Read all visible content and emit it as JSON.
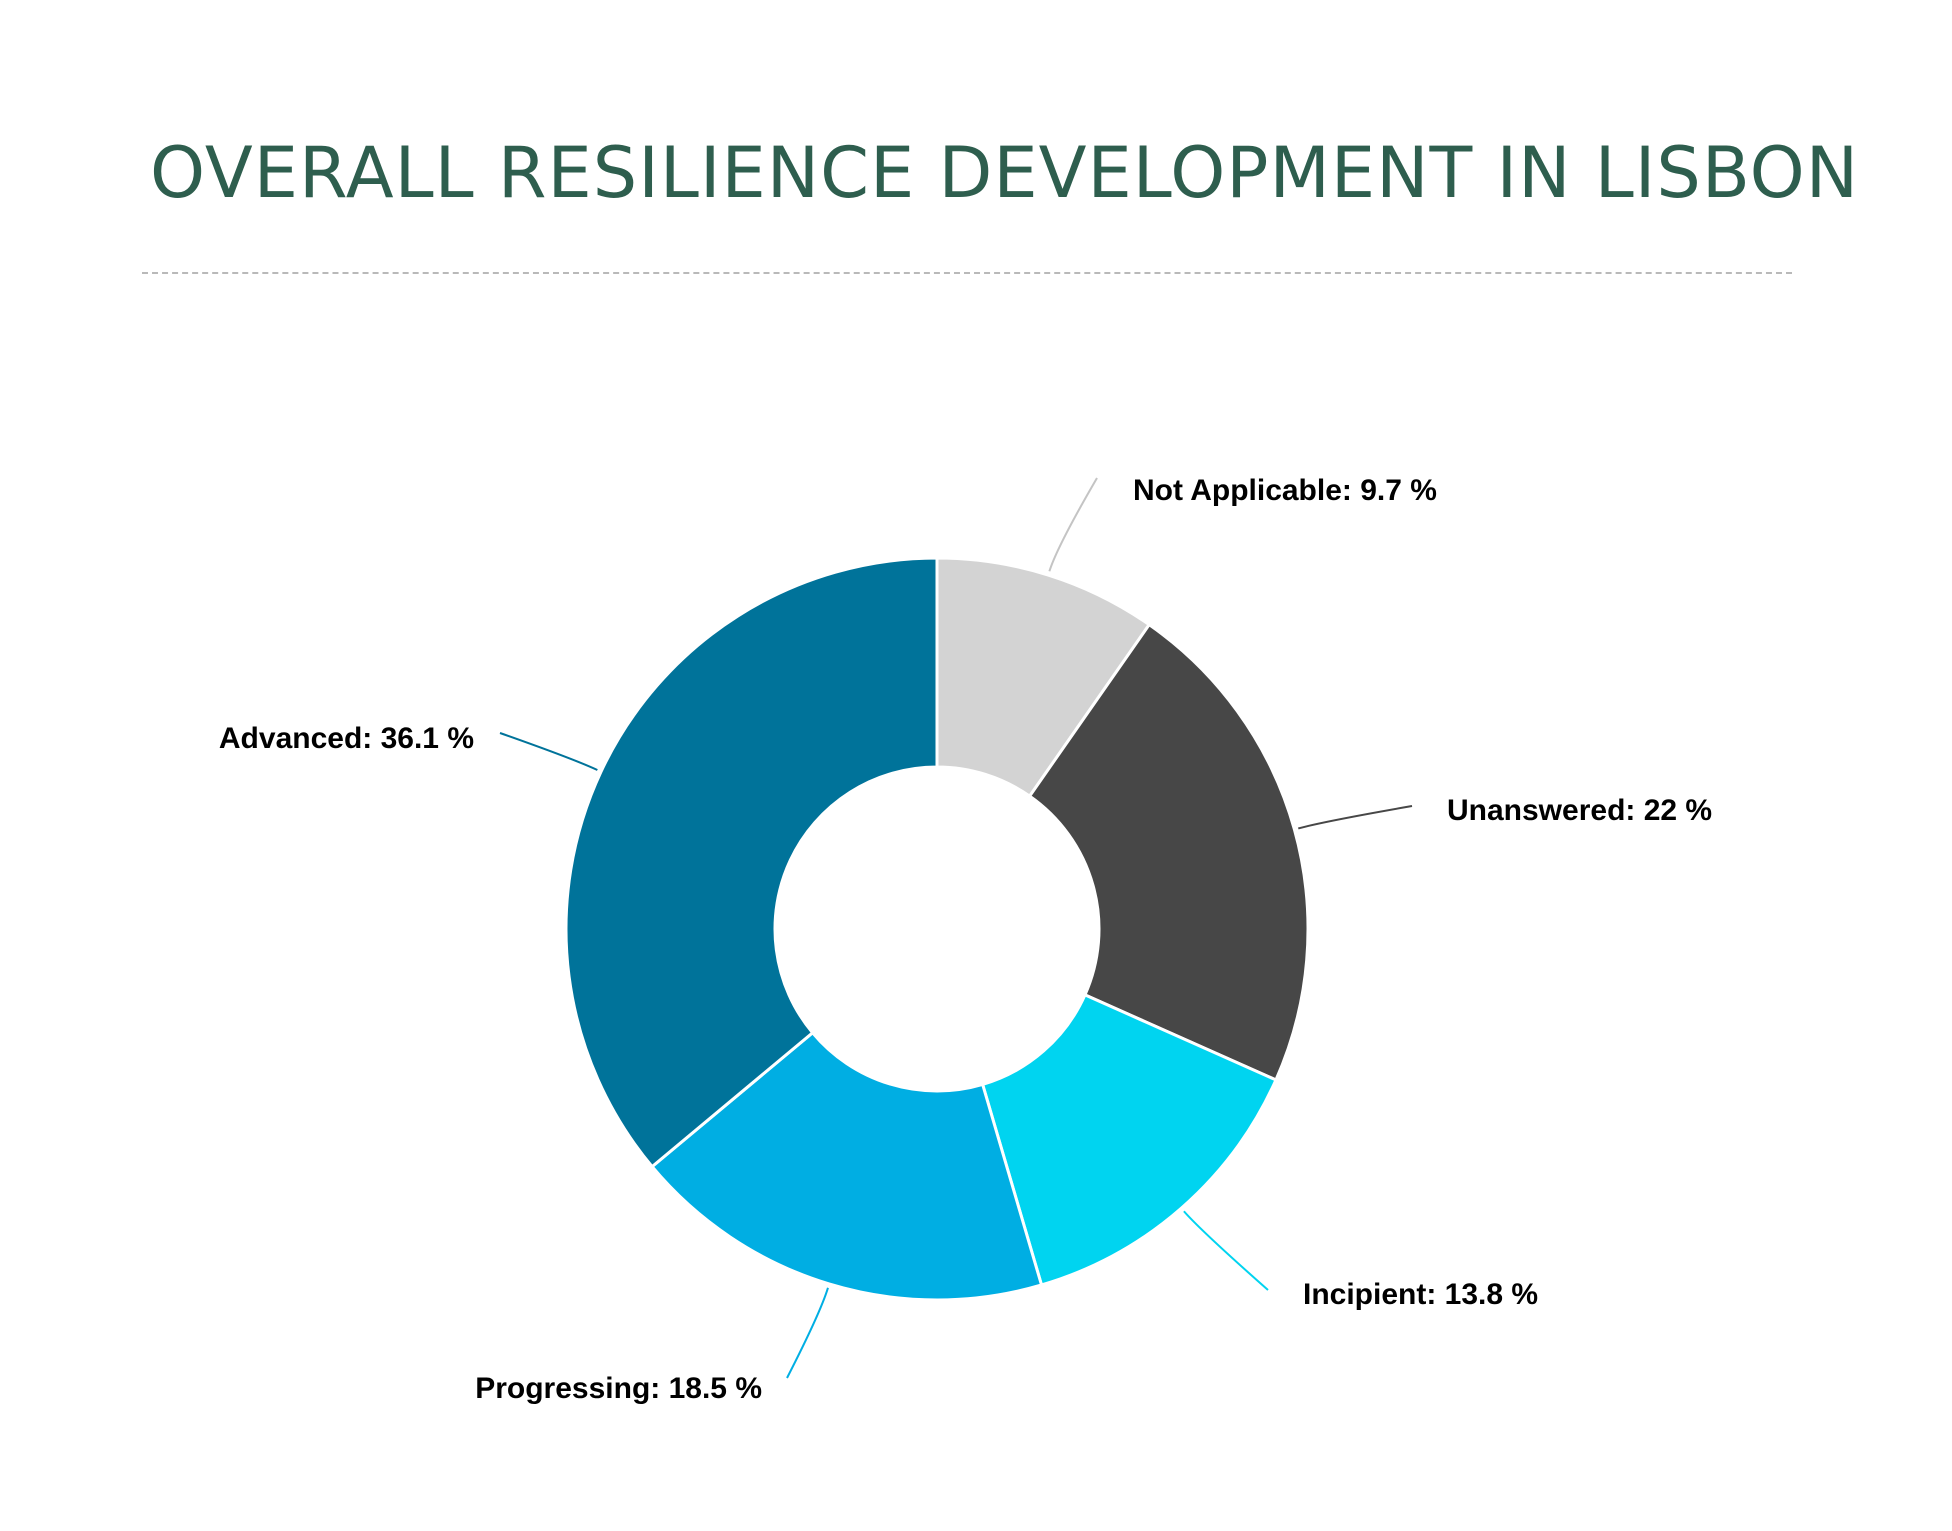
{
  "chart_data": {
    "type": "pie",
    "variant": "donut",
    "title": "OVERALL RESILIENCE DEVELOPMENT IN LISBON",
    "unit": "%",
    "slices": [
      {
        "label": "Not Applicable",
        "value": 9.7,
        "color": "#d3d3d3",
        "display": "Not Applicable: 9.7 %"
      },
      {
        "label": "Unanswered",
        "value": 22,
        "color": "#474747",
        "display": "Unanswered: 22 %"
      },
      {
        "label": "Incipient",
        "value": 13.8,
        "color": "#00d4f0",
        "display": "Incipient: 13.8 %"
      },
      {
        "label": "Progressing",
        "value": 18.5,
        "color": "#00aee3",
        "display": "Progressing: 18.5 %"
      },
      {
        "label": "Advanced",
        "value": 36.1,
        "color": "#00739a",
        "display": "Advanced: 36.1 %"
      }
    ],
    "start_angle": "top",
    "direction": "clockwise"
  },
  "colors": {
    "title": "#2e5e4e",
    "divider": "#b9b9b9"
  }
}
